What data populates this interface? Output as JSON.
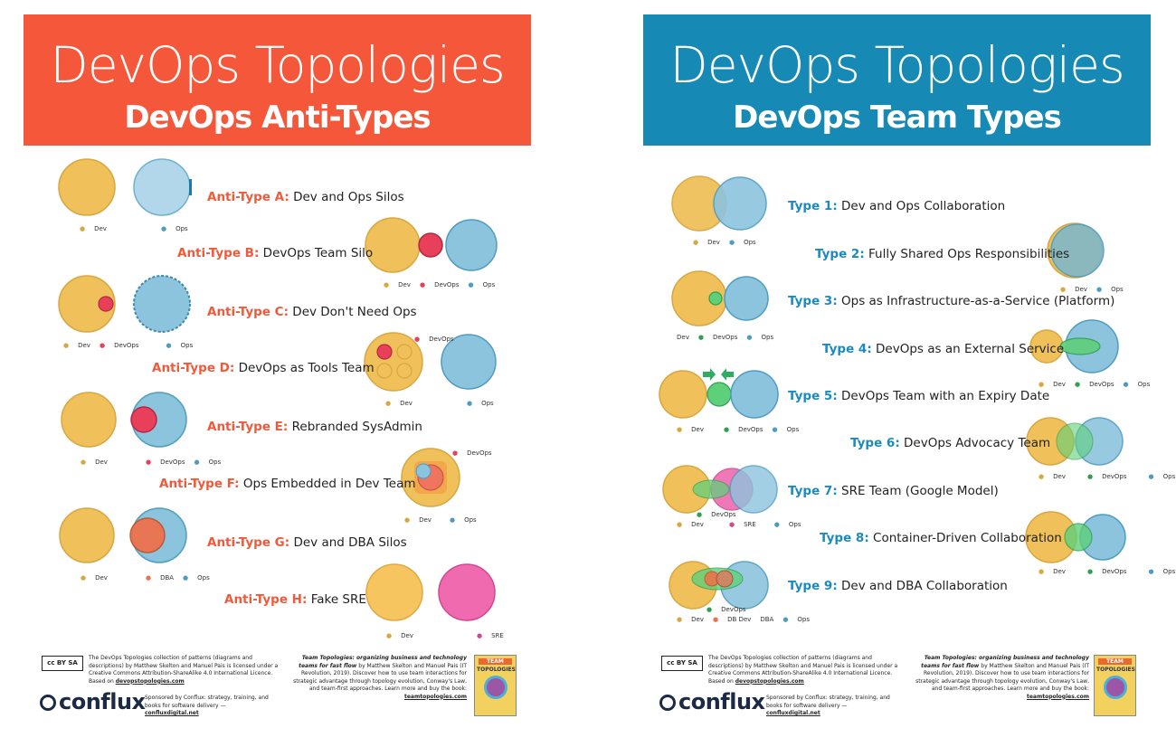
{
  "colors": {
    "dev": "#f0c05a",
    "ops": "#8cc4de",
    "devops": "#e8405a",
    "sre": "#f06ab0",
    "green": "#5fd07a",
    "dba": "#f0704a",
    "anti_accent": "#ef5a3a",
    "type_accent": "#1b8bbd"
  },
  "left": {
    "title": "DevOps Topologies",
    "subtitle": "DevOps Anti-Types",
    "rows": [
      {
        "key": "Anti-Type A:",
        "text": "Dev and Ops Silos",
        "legend": [
          "Dev",
          "Ops"
        ]
      },
      {
        "key": "Anti-Type B:",
        "text": "DevOps Team Silo",
        "legend": [
          "Dev",
          "DevOps",
          "Ops"
        ]
      },
      {
        "key": "Anti-Type C:",
        "text": "Dev Don't Need Ops",
        "legend": [
          "Dev",
          "DevOps",
          "Ops"
        ]
      },
      {
        "key": "Anti-Type D:",
        "text": "DevOps as Tools Team",
        "legend": [
          "DevOps",
          "Dev",
          "Ops"
        ]
      },
      {
        "key": "Anti-Type E:",
        "text": "Rebranded SysAdmin",
        "legend": [
          "Dev",
          "DevOps",
          "Ops"
        ]
      },
      {
        "key": "Anti-Type F:",
        "text": "Ops Embedded in Dev Team",
        "legend": [
          "DevOps",
          "Dev",
          "Ops"
        ]
      },
      {
        "key": "Anti-Type G:",
        "text": "Dev and DBA Silos",
        "legend": [
          "Dev",
          "DBA",
          "Ops"
        ]
      },
      {
        "key": "Anti-Type H:",
        "text": "Fake SRE",
        "legend": [
          "Dev",
          "SRE"
        ]
      }
    ]
  },
  "right": {
    "title": "DevOps Topologies",
    "subtitle": "DevOps Team Types",
    "rows": [
      {
        "key": "Type 1:",
        "text": "Dev and Ops Collaboration",
        "legend": [
          "Dev",
          "Ops"
        ]
      },
      {
        "key": "Type 2:",
        "text": "Fully Shared Ops Responsibilities",
        "legend": [
          "Dev",
          "Ops"
        ]
      },
      {
        "key": "Type 3:",
        "text": "Ops as Infrastructure-as-a-Service (Platform)",
        "legend": [
          "Dev",
          "DevOps",
          "Ops"
        ]
      },
      {
        "key": "Type 4:",
        "text": "DevOps as an External Service",
        "legend": [
          "Dev",
          "DevOps",
          "Ops"
        ]
      },
      {
        "key": "Type 5:",
        "text": "DevOps Team with an Expiry Date",
        "legend": [
          "Dev",
          "DevOps",
          "Ops"
        ]
      },
      {
        "key": "Type 6:",
        "text": "DevOps Advocacy Team",
        "legend": [
          "Dev",
          "DevOps",
          "Ops"
        ]
      },
      {
        "key": "Type 7:",
        "text": "SRE Team (Google Model)",
        "legend": [
          "DevOps",
          "Dev",
          "SRE",
          "Ops"
        ]
      },
      {
        "key": "Type 8:",
        "text": "Container-Driven Collaboration",
        "legend": [
          "Dev",
          "DevOps",
          "Ops"
        ]
      },
      {
        "key": "Type 9:",
        "text": "Dev and DBA Collaboration",
        "legend": [
          "DevOps",
          "Dev",
          "DB Dev",
          "DBA",
          "Ops"
        ]
      }
    ]
  },
  "footer": {
    "cc_badge": "cc BY SA",
    "license_text": "The DevOps Topologies collection of patterns (diagrams and descriptions) by Matthew Skelton and Manuel Pais is licensed under a Creative Commons Attribution-ShareAlike 4.0 International Licence. Based on",
    "license_link": "devopstopologies.com",
    "book_title_italic": "Team Topologies: organizing business and technology teams for fast flow",
    "book_text": "by Matthew Skelton and Manuel Pais (IT Revolution, 2019). Discover how to use team interactions for strategic advantage through topology evolution, Conway's Law, and team-first approaches. Learn more and buy the book:",
    "book_link": "teamtopologies.com",
    "logo": "conflux",
    "sponsor_text": "Sponsored by Conflux: strategy, training, and books for software delivery —",
    "sponsor_link": "confluxdigital.net",
    "book_cover_top": "TEAM",
    "book_cover_title": "TOPOLOGIES"
  }
}
